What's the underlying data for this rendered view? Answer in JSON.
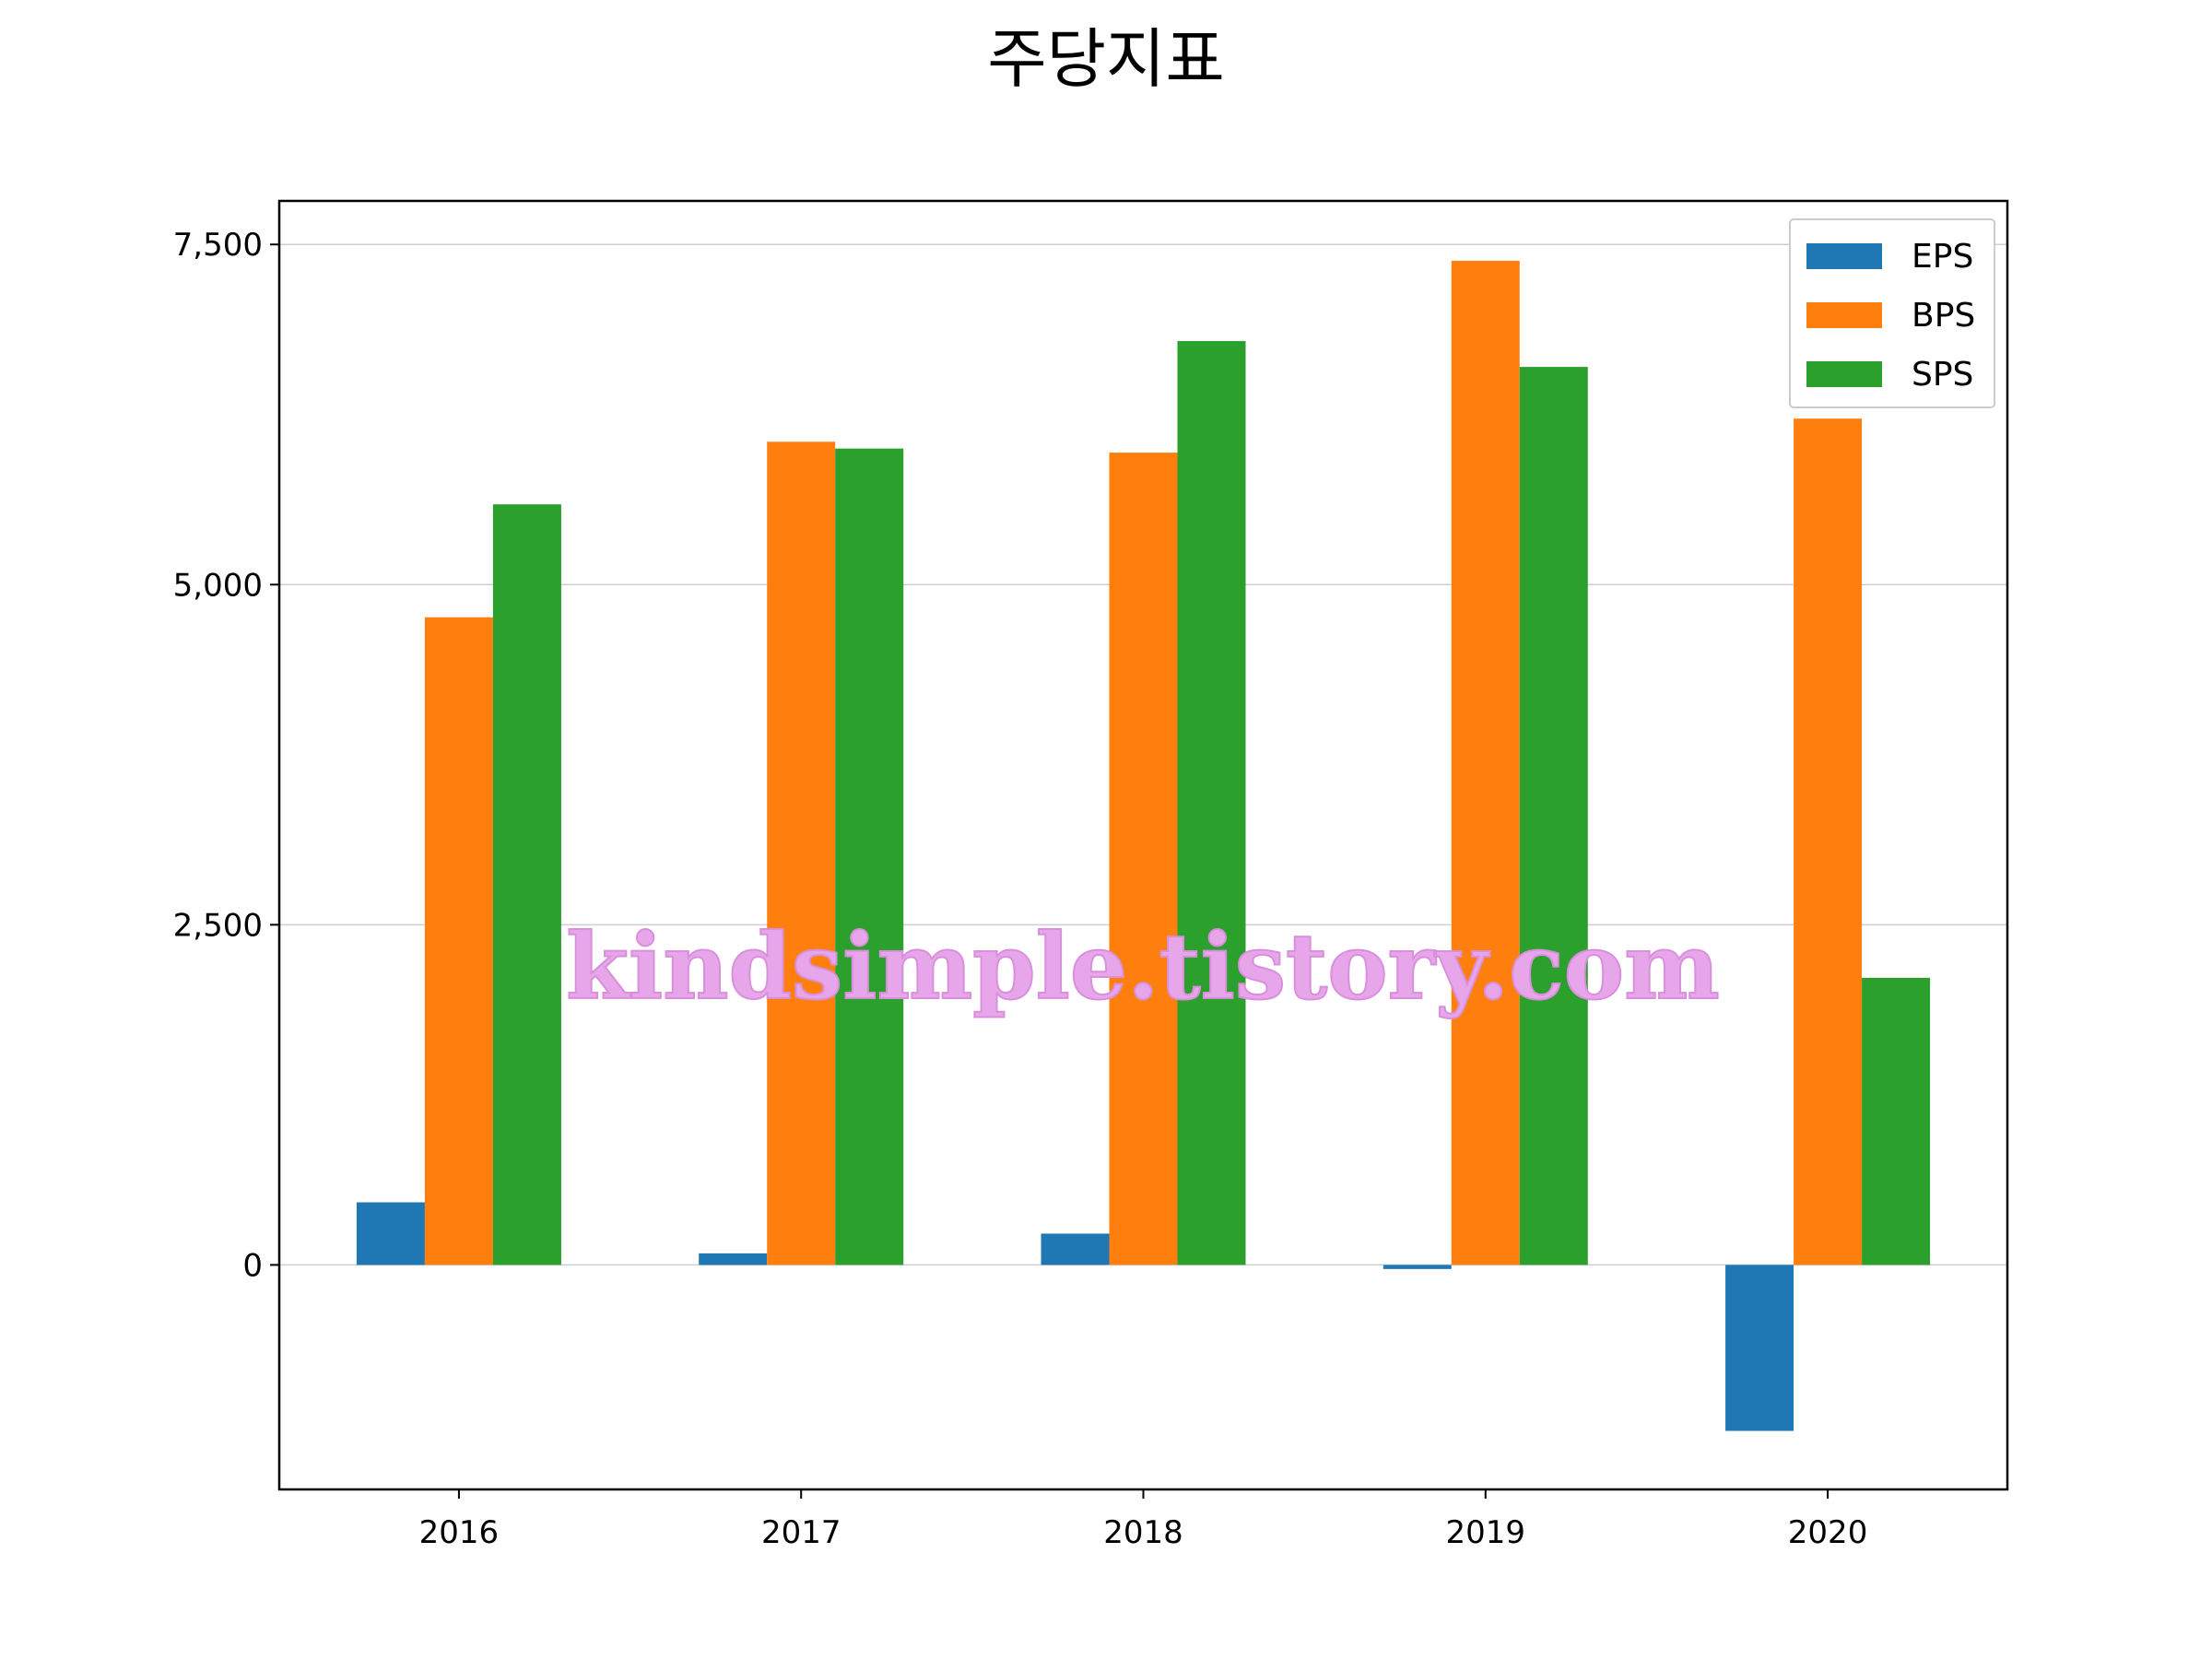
{
  "chart_data": {
    "type": "bar",
    "title": "주당지표",
    "xlabel": "",
    "ylabel": "",
    "categories": [
      "2016",
      "2017",
      "2018",
      "2019",
      "2020"
    ],
    "series": [
      {
        "name": "EPS",
        "color": "#1f77b4",
        "values": [
          460,
          85,
          230,
          -30,
          -1220
        ]
      },
      {
        "name": "BPS",
        "color": "#ff7f0e",
        "values": [
          4760,
          6050,
          5970,
          7380,
          6220
        ]
      },
      {
        "name": "SPS",
        "color": "#2ca02c",
        "values": [
          5590,
          6000,
          6790,
          6600,
          2110
        ]
      }
    ],
    "ylim": [
      -1650,
      7820
    ],
    "yticks": [
      0,
      2500,
      5000,
      7500
    ],
    "ytick_labels": [
      "0",
      "2,500",
      "5,000",
      "7,500"
    ],
    "grid": "y",
    "legend_position": "top-right",
    "watermark": "kindsimple.tistory.com"
  }
}
